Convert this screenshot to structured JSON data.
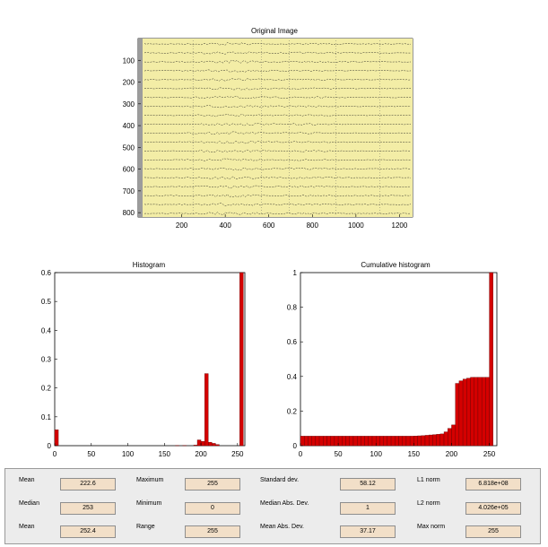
{
  "colors": {
    "image_background": "#f3eda6",
    "bar_fill": "#d40000",
    "bar_edge": "#5a0000",
    "stat_field": "#f2dfc8",
    "panel": "#ececec"
  },
  "original_image": {
    "title": "Original Image",
    "x_ticks": [
      200,
      400,
      600,
      800,
      1000,
      1200
    ],
    "y_ticks": [
      100,
      200,
      300,
      400,
      500,
      600,
      700,
      800
    ],
    "xlim": [
      0,
      1260
    ],
    "ylim": [
      0,
      820
    ]
  },
  "chart_data": [
    {
      "type": "bar",
      "title": "Histogram",
      "xlim": [
        0,
        260
      ],
      "ylim": [
        0,
        0.6
      ],
      "x_ticks": [
        0,
        50,
        100,
        150,
        200,
        250
      ],
      "y_ticks": [
        0,
        0.1,
        0.2,
        0.3,
        0.4,
        0.5,
        0.6
      ],
      "y_tick_labels": [
        "0",
        "0.1",
        "0.2",
        "0.3",
        "0.4",
        "0.5",
        "0.6"
      ],
      "x": [
        0,
        165,
        175,
        190,
        195,
        200,
        205,
        210,
        215,
        220,
        253
      ],
      "values": [
        0.055,
        0.001,
        0.001,
        0.002,
        0.02,
        0.015,
        0.25,
        0.012,
        0.008,
        0.004,
        0.6
      ],
      "bar_width": 5
    },
    {
      "type": "bar",
      "title": "Cumulative histogram",
      "xlim": [
        0,
        260
      ],
      "ylim": [
        0,
        1
      ],
      "x_ticks": [
        0,
        50,
        100,
        150,
        200,
        250
      ],
      "y_ticks": [
        0,
        0.2,
        0.4,
        0.6,
        0.8,
        1
      ],
      "y_tick_labels": [
        "0",
        "0.2",
        "0.4",
        "0.6",
        "0.8",
        "1"
      ],
      "x": [
        0,
        5,
        10,
        15,
        20,
        25,
        30,
        35,
        40,
        45,
        50,
        55,
        60,
        65,
        70,
        75,
        80,
        85,
        90,
        95,
        100,
        105,
        110,
        115,
        120,
        125,
        130,
        135,
        140,
        145,
        150,
        155,
        160,
        165,
        170,
        175,
        180,
        185,
        190,
        195,
        200,
        205,
        210,
        215,
        220,
        225,
        230,
        235,
        240,
        245,
        250
      ],
      "values": [
        0.055,
        0.055,
        0.055,
        0.055,
        0.055,
        0.055,
        0.055,
        0.055,
        0.055,
        0.055,
        0.055,
        0.055,
        0.055,
        0.055,
        0.055,
        0.055,
        0.055,
        0.055,
        0.055,
        0.055,
        0.055,
        0.055,
        0.055,
        0.055,
        0.055,
        0.055,
        0.055,
        0.055,
        0.055,
        0.055,
        0.056,
        0.057,
        0.058,
        0.06,
        0.062,
        0.064,
        0.066,
        0.068,
        0.08,
        0.1,
        0.12,
        0.36,
        0.375,
        0.385,
        0.39,
        0.395,
        0.395,
        0.395,
        0.395,
        0.395,
        1.0
      ],
      "bar_width": 5
    }
  ],
  "stats": {
    "col1": [
      {
        "label": "Mean",
        "value": "222.6"
      },
      {
        "label": "Median",
        "value": "253"
      },
      {
        "label": "Mean",
        "value": "252.4"
      }
    ],
    "col2": [
      {
        "label": "Maximum",
        "value": "255"
      },
      {
        "label": "Minimum",
        "value": "0"
      },
      {
        "label": "Range",
        "value": "255"
      }
    ],
    "col3": [
      {
        "label": "Standard dev.",
        "value": "58.12"
      },
      {
        "label": "Median Abs. Dev.",
        "value": "1"
      },
      {
        "label": "Mean Abs. Dev.",
        "value": "37.17"
      }
    ],
    "col4": [
      {
        "label": "L1 norm",
        "value": "6.818e+08"
      },
      {
        "label": "L2 norm",
        "value": "4.026e+05"
      },
      {
        "label": "Max norm",
        "value": "255"
      }
    ]
  }
}
